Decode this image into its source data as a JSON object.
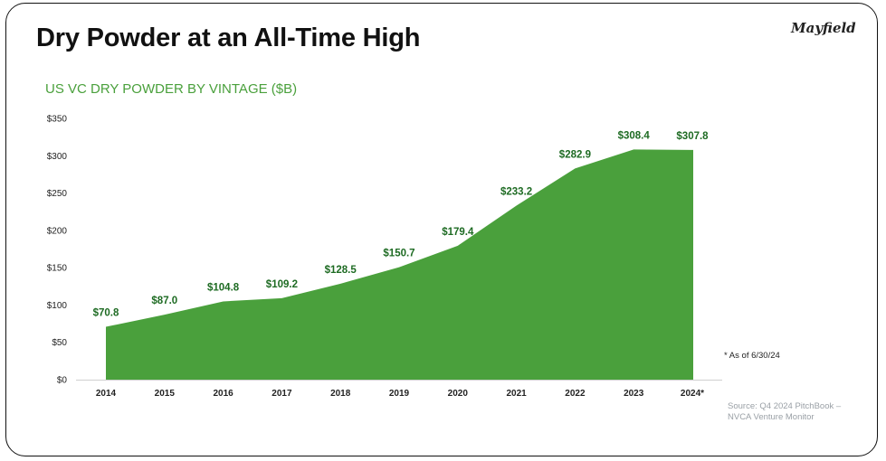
{
  "header": {
    "title": "Dry Powder at an All-Time High",
    "logo_text": "Mayfield"
  },
  "chart_data": {
    "type": "area",
    "title": "US VC DRY POWDER BY VINTAGE ($B)",
    "categories": [
      "2014",
      "2015",
      "2016",
      "2017",
      "2018",
      "2019",
      "2020",
      "2021",
      "2022",
      "2023",
      "2024*"
    ],
    "values": [
      70.8,
      87.0,
      104.8,
      109.2,
      128.5,
      150.7,
      179.4,
      233.2,
      282.9,
      308.4,
      307.8
    ],
    "data_labels": [
      "$70.8",
      "$87.0",
      "$104.8",
      "$109.2",
      "$128.5",
      "$150.7",
      "$179.4",
      "$233.2",
      "$282.9",
      "$308.4",
      "$307.8"
    ],
    "ylim": [
      0,
      350
    ],
    "y_ticks": [
      0,
      50,
      100,
      150,
      200,
      250,
      300,
      350
    ],
    "y_tick_labels": [
      "$0",
      "$50",
      "$100",
      "$150",
      "$200",
      "$250",
      "$300",
      "$350"
    ],
    "grid": false,
    "xlabel": "",
    "ylabel": "",
    "colors": {
      "fill": "#4aa03c",
      "label": "#1e6b23",
      "subtitle": "#4aa03c"
    }
  },
  "notes": {
    "footnote": "* As of 6/30/24",
    "source_line1": "Source: Q4 2024 PitchBook –",
    "source_line2": "NVCA Venture Monitor"
  }
}
